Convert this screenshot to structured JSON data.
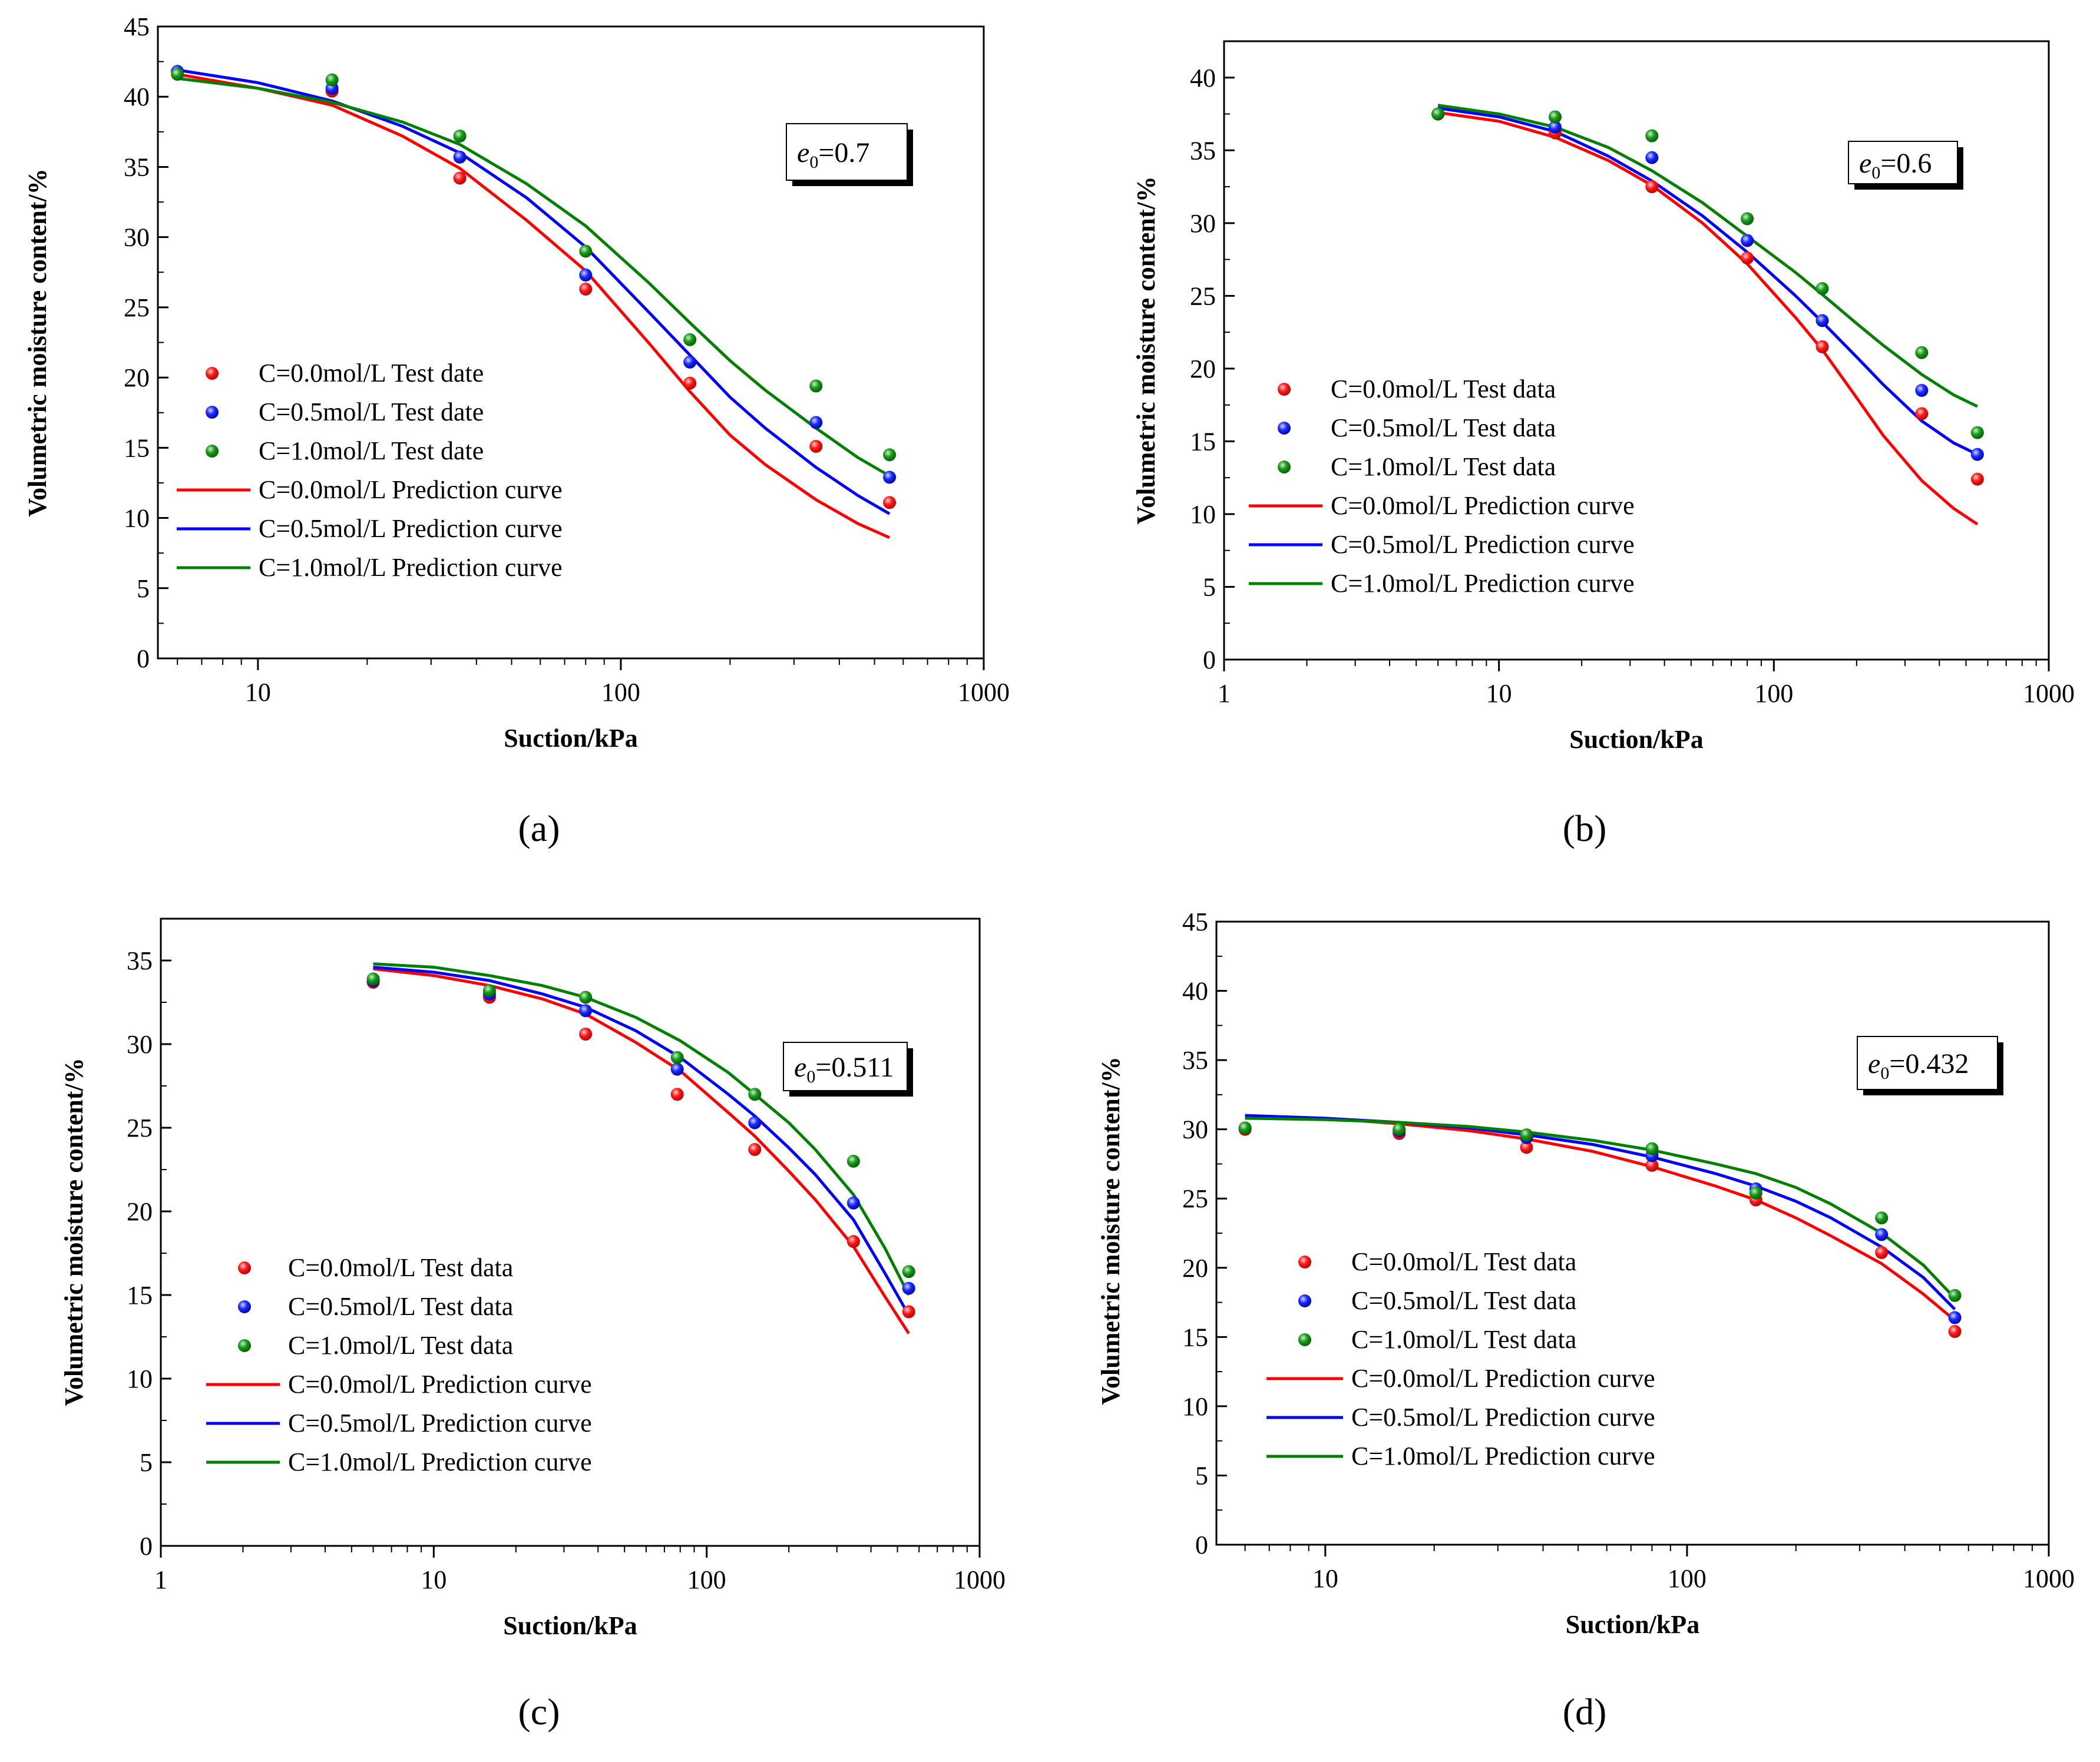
{
  "colors": {
    "c00": "#ff0000",
    "c05": "#0000ff",
    "c10": "#008000",
    "axis": "#000000"
  },
  "chart_data": [
    {
      "type": "scatter",
      "panel_label": "(a)",
      "e0_label": {
        "symbol": "e",
        "sub": "0",
        "value": "=0.7"
      },
      "xlabel": "Suction/kPa",
      "ylabel": "Volumetric moisture content/%",
      "xscale": "log",
      "xlim": [
        5.3,
        1000
      ],
      "ylim": [
        0,
        45
      ],
      "xticks": [
        10,
        100,
        1000
      ],
      "xtick_labels": [
        "10",
        "100",
        "1000"
      ],
      "yticks": [
        0,
        5,
        10,
        15,
        20,
        25,
        30,
        35,
        40,
        45
      ],
      "ytick_labels": [
        "0",
        "5",
        "10",
        "15",
        "20",
        "25",
        "30",
        "35",
        "40",
        "45"
      ],
      "legend_position": "center-left",
      "suction": [
        6,
        16,
        36,
        80,
        155,
        345,
        550
      ],
      "series": [
        {
          "name": "C=0.0mol/L Test date",
          "kind": "points",
          "color": "#ff0000",
          "values": [
            41.8,
            40.4,
            34.2,
            26.3,
            19.6,
            15.1,
            11.1
          ]
        },
        {
          "name": "C=0.5mol/L Test date",
          "kind": "points",
          "color": "#0000ff",
          "values": [
            41.8,
            40.6,
            35.7,
            27.3,
            21.1,
            16.8,
            12.9
          ]
        },
        {
          "name": "C=1.0mol/L Test date",
          "kind": "points",
          "color": "#008000",
          "values": [
            41.6,
            41.2,
            37.2,
            29.0,
            22.7,
            19.4,
            14.5
          ]
        },
        {
          "name": "C=0.0mol/L Prediction curve",
          "kind": "line",
          "color": "#ff0000",
          "x": [
            6,
            10,
            16,
            25,
            36,
            55,
            80,
            120,
            155,
            200,
            250,
            345,
            450,
            550
          ],
          "y": [
            41.6,
            40.6,
            39.4,
            37.2,
            34.9,
            31.2,
            27.6,
            22.4,
            19.0,
            15.9,
            13.8,
            11.3,
            9.6,
            8.6
          ]
        },
        {
          "name": "C=0.5mol/L Prediction curve",
          "kind": "line",
          "color": "#0000ff",
          "x": [
            6,
            10,
            16,
            25,
            36,
            55,
            80,
            120,
            155,
            200,
            250,
            345,
            450,
            550
          ],
          "y": [
            41.9,
            41.0,
            39.7,
            37.9,
            36.0,
            32.8,
            29.3,
            24.6,
            21.6,
            18.6,
            16.4,
            13.6,
            11.6,
            10.3
          ]
        },
        {
          "name": "C=1.0mol/L Prediction curve",
          "kind": "line",
          "color": "#008000",
          "x": [
            6,
            10,
            16,
            25,
            36,
            55,
            80,
            120,
            155,
            200,
            250,
            345,
            450,
            550
          ],
          "y": [
            41.3,
            40.6,
            39.6,
            38.2,
            36.6,
            33.8,
            30.8,
            26.7,
            23.9,
            21.2,
            19.1,
            16.4,
            14.3,
            13.0
          ]
        }
      ]
    },
    {
      "type": "scatter",
      "panel_label": "(b)",
      "e0_label": {
        "symbol": "e",
        "sub": "0",
        "value": "=0.6"
      },
      "xlabel": "Suction/kPa",
      "ylabel": "Volumetric moisture content/%",
      "xscale": "log",
      "xlim": [
        1,
        1000
      ],
      "ylim": [
        0,
        42.5
      ],
      "xticks": [
        1,
        10,
        100,
        1000
      ],
      "xtick_labels": [
        "1",
        "10",
        "100",
        "1000"
      ],
      "yticks": [
        0,
        5,
        10,
        15,
        20,
        25,
        30,
        35,
        40
      ],
      "ytick_labels": [
        "0",
        "5",
        "10",
        "15",
        "20",
        "25",
        "30",
        "35",
        "40"
      ],
      "legend_position": "center-left",
      "suction": [
        6,
        16,
        36,
        80,
        150,
        345,
        550
      ],
      "series": [
        {
          "name": "C=0.0mol/L Test data",
          "kind": "points",
          "color": "#ff0000",
          "values": [
            37.5,
            36.2,
            32.5,
            27.6,
            21.5,
            16.9,
            12.4
          ]
        },
        {
          "name": "C=0.5mol/L Test data",
          "kind": "points",
          "color": "#0000ff",
          "values": [
            37.5,
            36.6,
            34.5,
            28.8,
            23.3,
            18.5,
            14.1
          ]
        },
        {
          "name": "C=1.0mol/L Test data",
          "kind": "points",
          "color": "#008000",
          "values": [
            37.5,
            37.3,
            36.0,
            30.3,
            25.5,
            21.1,
            15.6
          ]
        },
        {
          "name": "C=0.0mol/L Prediction curve",
          "kind": "line",
          "color": "#ff0000",
          "x": [
            6,
            10,
            16,
            25,
            36,
            55,
            80,
            120,
            150,
            200,
            250,
            345,
            450,
            550
          ],
          "y": [
            37.6,
            37.0,
            35.9,
            34.3,
            32.6,
            30.0,
            27.2,
            23.5,
            21.3,
            18.0,
            15.4,
            12.3,
            10.4,
            9.3
          ]
        },
        {
          "name": "C=0.5mol/L Prediction curve",
          "kind": "line",
          "color": "#0000ff",
          "x": [
            6,
            10,
            16,
            25,
            36,
            55,
            80,
            120,
            150,
            200,
            250,
            345,
            450,
            550
          ],
          "y": [
            37.9,
            37.3,
            36.3,
            34.6,
            32.9,
            30.5,
            28.0,
            25.0,
            23.2,
            20.8,
            18.9,
            16.4,
            14.9,
            14.1
          ]
        },
        {
          "name": "C=1.0mol/L Prediction curve",
          "kind": "line",
          "color": "#008000",
          "x": [
            6,
            10,
            16,
            25,
            36,
            55,
            80,
            120,
            150,
            200,
            250,
            345,
            450,
            550
          ],
          "y": [
            38.1,
            37.5,
            36.6,
            35.2,
            33.6,
            31.4,
            29.1,
            26.6,
            25.1,
            23.1,
            21.6,
            19.6,
            18.2,
            17.4
          ]
        }
      ]
    },
    {
      "type": "scatter",
      "panel_label": "(c)",
      "e0_label": {
        "symbol": "e",
        "sub": "0",
        "value": "=0.511"
      },
      "xlabel": "Suction/kPa",
      "ylabel": "Volumetric moisture content/%",
      "xscale": "log",
      "xlim": [
        1,
        1000
      ],
      "ylim": [
        0,
        37.5
      ],
      "xticks": [
        1,
        10,
        100,
        1000
      ],
      "xtick_labels": [
        "1",
        "10",
        "100",
        "1000"
      ],
      "yticks": [
        0,
        5,
        10,
        15,
        20,
        25,
        30,
        35
      ],
      "ytick_labels": [
        "0",
        "5",
        "10",
        "15",
        "20",
        "25",
        "30",
        "35"
      ],
      "legend_position": "bottom-left",
      "suction": [
        6,
        16,
        36,
        78,
        150,
        345,
        550
      ],
      "series": [
        {
          "name": "C=0.0mol/L Test data",
          "kind": "points",
          "color": "#ff0000",
          "values": [
            33.7,
            32.8,
            30.6,
            27.0,
            23.7,
            18.2,
            14.0
          ]
        },
        {
          "name": "C=0.5mol/L Test data",
          "kind": "points",
          "color": "#0000ff",
          "values": [
            33.8,
            33.0,
            32.0,
            28.5,
            25.3,
            20.5,
            15.4
          ]
        },
        {
          "name": "C=1.0mol/L Test data",
          "kind": "points",
          "color": "#008000",
          "values": [
            33.9,
            33.2,
            32.8,
            29.2,
            27.0,
            23.0,
            16.4
          ]
        },
        {
          "name": "C=0.0mol/L Prediction curve",
          "kind": "line",
          "color": "#ff0000",
          "x": [
            6,
            10,
            16,
            25,
            36,
            55,
            80,
            120,
            150,
            200,
            250,
            345,
            450,
            550
          ],
          "y": [
            34.5,
            34.1,
            33.5,
            32.7,
            31.8,
            30.1,
            28.4,
            25.9,
            24.5,
            22.4,
            20.7,
            17.9,
            14.9,
            12.7
          ]
        },
        {
          "name": "C=0.5mol/L Prediction curve",
          "kind": "line",
          "color": "#0000ff",
          "x": [
            6,
            10,
            16,
            25,
            36,
            55,
            80,
            120,
            150,
            200,
            250,
            345,
            450,
            550
          ],
          "y": [
            34.6,
            34.3,
            33.8,
            33.0,
            32.2,
            30.8,
            29.2,
            27.0,
            25.7,
            23.8,
            22.2,
            19.5,
            16.3,
            13.8
          ]
        },
        {
          "name": "C=1.0mol/L Prediction curve",
          "kind": "line",
          "color": "#008000",
          "x": [
            6,
            10,
            16,
            25,
            36,
            55,
            80,
            120,
            150,
            200,
            250,
            345,
            450,
            550
          ],
          "y": [
            34.8,
            34.6,
            34.1,
            33.5,
            32.8,
            31.6,
            30.2,
            28.3,
            27.0,
            25.3,
            23.7,
            21.0,
            17.8,
            15.0
          ]
        }
      ]
    },
    {
      "type": "scatter",
      "panel_label": "(d)",
      "e0_label": {
        "symbol": "e",
        "sub": "0",
        "value": "=0.432"
      },
      "xlabel": "Suction/kPa",
      "ylabel": "Volumetric moisture content/%",
      "xscale": "log",
      "xlim": [
        5,
        1000
      ],
      "ylim": [
        0,
        45
      ],
      "xticks": [
        10,
        100,
        1000
      ],
      "xtick_labels": [
        "10",
        "100",
        "1000"
      ],
      "yticks": [
        0,
        5,
        10,
        15,
        20,
        25,
        30,
        35,
        40,
        45
      ],
      "ytick_labels": [
        "0",
        "5",
        "10",
        "15",
        "20",
        "25",
        "30",
        "35",
        "40",
        "45"
      ],
      "legend_position": "bottom-left",
      "suction": [
        6,
        16,
        36,
        80,
        155,
        345,
        550
      ],
      "series": [
        {
          "name": "C=0.0mol/L Test data",
          "kind": "points",
          "color": "#ff0000",
          "values": [
            30.0,
            29.7,
            28.7,
            27.4,
            24.9,
            21.1,
            15.4
          ]
        },
        {
          "name": "C=0.5mol/L Test data",
          "kind": "points",
          "color": "#0000ff",
          "values": [
            30.1,
            29.9,
            29.4,
            28.1,
            25.7,
            22.4,
            16.4
          ]
        },
        {
          "name": "C=1.0mol/L Test data",
          "kind": "points",
          "color": "#008000",
          "values": [
            30.1,
            30.0,
            29.6,
            28.6,
            25.4,
            23.6,
            18.0
          ]
        },
        {
          "name": "C=0.0mol/L Prediction curve",
          "kind": "line",
          "color": "#ff0000",
          "x": [
            6,
            10,
            16,
            25,
            36,
            55,
            80,
            120,
            155,
            200,
            250,
            345,
            450,
            550
          ],
          "y": [
            31.0,
            30.8,
            30.4,
            29.9,
            29.3,
            28.4,
            27.3,
            25.9,
            24.9,
            23.6,
            22.3,
            20.3,
            18.1,
            16.2
          ]
        },
        {
          "name": "C=0.5mol/L Prediction curve",
          "kind": "line",
          "color": "#0000ff",
          "x": [
            6,
            10,
            16,
            25,
            36,
            55,
            80,
            120,
            155,
            200,
            250,
            345,
            450,
            550
          ],
          "y": [
            31.0,
            30.8,
            30.5,
            30.1,
            29.6,
            28.9,
            28.0,
            26.8,
            25.9,
            24.8,
            23.6,
            21.5,
            19.3,
            17.0
          ]
        },
        {
          "name": "C=1.0mol/L Prediction curve",
          "kind": "line",
          "color": "#008000",
          "x": [
            6,
            10,
            16,
            25,
            36,
            55,
            80,
            120,
            155,
            200,
            250,
            345,
            450,
            550
          ],
          "y": [
            30.8,
            30.7,
            30.5,
            30.2,
            29.8,
            29.2,
            28.5,
            27.5,
            26.8,
            25.8,
            24.6,
            22.5,
            20.2,
            17.8
          ]
        }
      ]
    }
  ]
}
